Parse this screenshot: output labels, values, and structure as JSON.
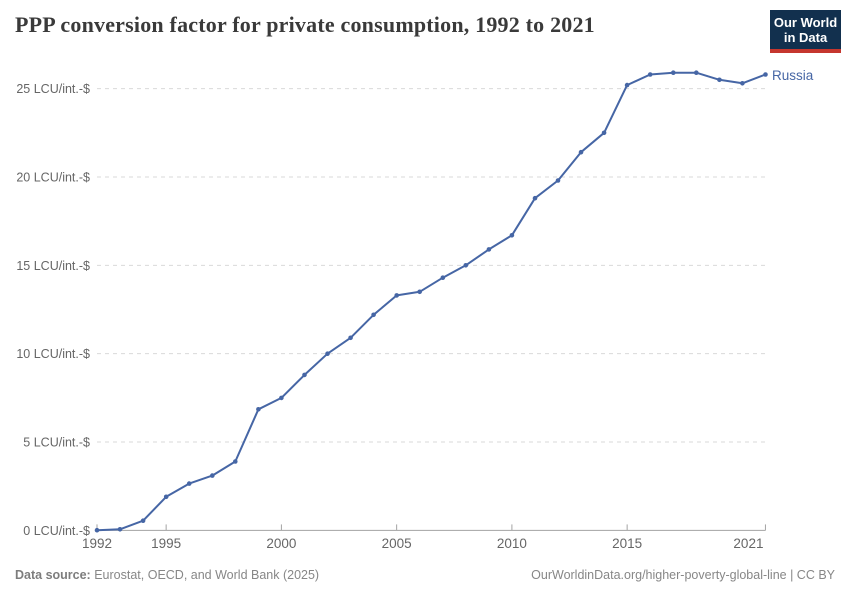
{
  "header": {
    "title": "PPP conversion factor for private consumption, 1992 to 2021",
    "logo": {
      "line1": "Our World",
      "line2": "in Data"
    }
  },
  "series_label": "Russia",
  "chart_data": {
    "type": "line",
    "title": "PPP conversion factor for private consumption, 1992 to 2021",
    "entity": "Russia",
    "unit": "LCU/int.-$",
    "xlabel": "",
    "ylabel": "LCU/int.-$",
    "xlim": [
      1992,
      2021
    ],
    "ylim": [
      0,
      26.5
    ],
    "grid": "horizontal-dashed",
    "legend_position": "end-of-line-label",
    "x": [
      1992,
      1993,
      1994,
      1995,
      1996,
      1997,
      1998,
      1999,
      2000,
      2001,
      2002,
      2003,
      2004,
      2005,
      2006,
      2007,
      2008,
      2009,
      2010,
      2011,
      2012,
      2013,
      2014,
      2015,
      2016,
      2017,
      2018,
      2019,
      2020,
      2021
    ],
    "series": [
      {
        "name": "Russia",
        "values": [
          0.01,
          0.06,
          0.55,
          1.9,
          2.65,
          3.1,
          3.9,
          6.85,
          7.5,
          8.8,
          10.0,
          10.9,
          12.2,
          13.3,
          13.5,
          14.3,
          15.0,
          15.9,
          16.7,
          18.8,
          19.8,
          21.4,
          22.5,
          25.2,
          25.8,
          25.9,
          25.9,
          25.5,
          25.3,
          25.8
        ]
      }
    ],
    "x_ticks": [
      {
        "value": 1992,
        "label": "1992"
      },
      {
        "value": 1995,
        "label": "1995"
      },
      {
        "value": 2000,
        "label": "2000"
      },
      {
        "value": 2005,
        "label": "2005"
      },
      {
        "value": 2010,
        "label": "2010"
      },
      {
        "value": 2015,
        "label": "2015"
      },
      {
        "value": 2021,
        "label": "2021"
      }
    ],
    "y_ticks": [
      {
        "value": 0,
        "label": "0 LCU/int.-$"
      },
      {
        "value": 5,
        "label": "5 LCU/int.-$"
      },
      {
        "value": 10,
        "label": "10 LCU/int.-$"
      },
      {
        "value": 15,
        "label": "15 LCU/int.-$"
      },
      {
        "value": 20,
        "label": "20 LCU/int.-$"
      },
      {
        "value": 25,
        "label": "25 LCU/int.-$"
      }
    ]
  },
  "footer": {
    "source_label": "Data source:",
    "source_text": "Eurostat, OECD, and World Bank (2025)",
    "link_text": "OurWorldinData.org/higher-poverty-global-line | CC BY"
  },
  "colors": {
    "line": "#4666a5",
    "series_label": "#4666a5",
    "grid": "#d9d9d9",
    "axis": "#a3a3a3",
    "tick_text": "#666666",
    "title_text": "#3a3a3a",
    "footer_text": "#878787",
    "logo_bg": "#12304e",
    "logo_red": "#c5362e"
  }
}
